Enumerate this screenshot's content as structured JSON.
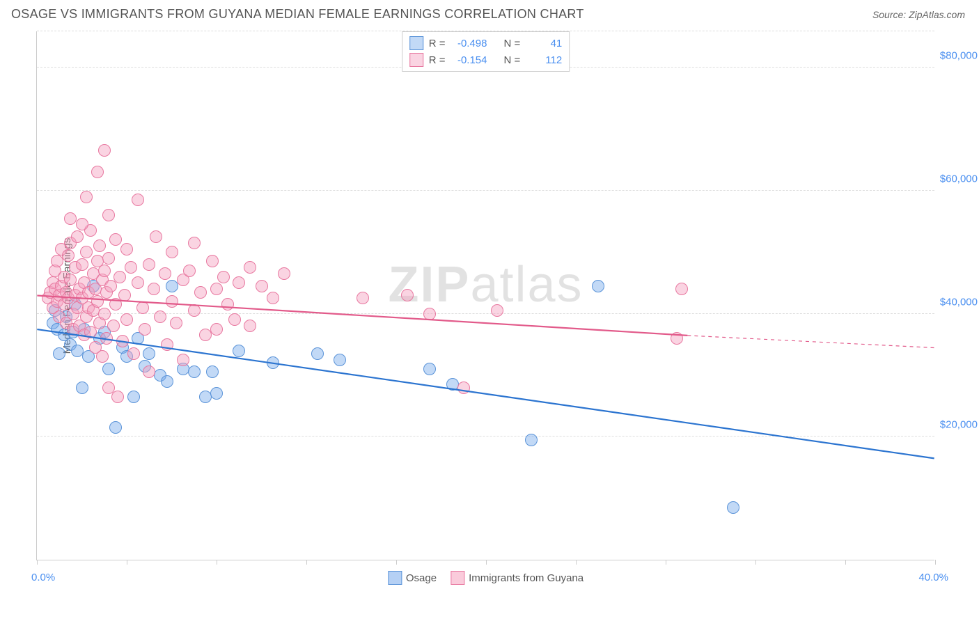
{
  "title": "OSAGE VS IMMIGRANTS FROM GUYANA MEDIAN FEMALE EARNINGS CORRELATION CHART",
  "source_label": "Source: ",
  "source_name": "ZipAtlas.com",
  "watermark_a": "ZIP",
  "watermark_b": "atlas",
  "chart": {
    "type": "scatter",
    "yaxis_title": "Median Female Earnings",
    "xlim": [
      0,
      40
    ],
    "ylim": [
      0,
      86000
    ],
    "xlabel_min": "0.0%",
    "xlabel_max": "40.0%",
    "ytick_values": [
      20000,
      40000,
      60000,
      80000
    ],
    "ytick_labels": [
      "$20,000",
      "$40,000",
      "$60,000",
      "$80,000"
    ],
    "xtick_values": [
      0,
      4,
      8,
      12,
      16,
      20,
      24,
      28,
      32,
      36,
      40
    ],
    "background_color": "#ffffff",
    "grid_color": "#dddddd",
    "marker_radius": 9,
    "marker_stroke_width": 1.2,
    "series": [
      {
        "name": "Osage",
        "fill": "rgba(120,170,235,0.45)",
        "stroke": "#5a93d8",
        "line_color": "#2b74d0",
        "line_width": 2.2,
        "regression": {
          "x1": 0,
          "y1": 37500,
          "x2": 40,
          "y2": 16500,
          "dash_after_x": 40
        },
        "R": "-0.498",
        "N": "41",
        "points": [
          [
            0.7,
            38500
          ],
          [
            0.8,
            40500
          ],
          [
            0.9,
            37500
          ],
          [
            1.0,
            33500
          ],
          [
            1.2,
            36500
          ],
          [
            1.3,
            39500
          ],
          [
            1.5,
            35000
          ],
          [
            1.6,
            37000
          ],
          [
            1.7,
            41500
          ],
          [
            1.8,
            34000
          ],
          [
            2.0,
            28000
          ],
          [
            2.1,
            37500
          ],
          [
            2.3,
            33000
          ],
          [
            2.5,
            44500
          ],
          [
            2.8,
            36000
          ],
          [
            3.0,
            37000
          ],
          [
            3.2,
            31000
          ],
          [
            3.5,
            21500
          ],
          [
            3.8,
            34500
          ],
          [
            4.0,
            33000
          ],
          [
            4.3,
            26500
          ],
          [
            4.5,
            36000
          ],
          [
            4.8,
            31500
          ],
          [
            5.0,
            33500
          ],
          [
            5.5,
            30000
          ],
          [
            5.8,
            29000
          ],
          [
            6.0,
            44500
          ],
          [
            6.5,
            31000
          ],
          [
            7.0,
            30500
          ],
          [
            7.5,
            26500
          ],
          [
            7.8,
            30500
          ],
          [
            8.0,
            27000
          ],
          [
            9.0,
            34000
          ],
          [
            10.5,
            32000
          ],
          [
            12.5,
            33500
          ],
          [
            13.5,
            32500
          ],
          [
            17.5,
            31000
          ],
          [
            18.5,
            28500
          ],
          [
            22.0,
            19500
          ],
          [
            25.0,
            44500
          ],
          [
            31.0,
            8500
          ]
        ]
      },
      {
        "name": "Immigrants from Guyana",
        "fill": "rgba(245,160,190,0.45)",
        "stroke": "#e878a0",
        "line_color": "#e25a8a",
        "line_width": 2.2,
        "regression": {
          "x1": 0,
          "y1": 43000,
          "x2": 29,
          "y2": 36500,
          "dash_after_x": 29,
          "dash_x2": 40,
          "dash_y2": 34500
        },
        "R": "-0.154",
        "N": "112",
        "points": [
          [
            0.5,
            42500
          ],
          [
            0.6,
            43500
          ],
          [
            0.7,
            45000
          ],
          [
            0.7,
            41000
          ],
          [
            0.8,
            47000
          ],
          [
            0.8,
            44000
          ],
          [
            0.9,
            48500
          ],
          [
            0.9,
            42000
          ],
          [
            1.0,
            43000
          ],
          [
            1.0,
            39500
          ],
          [
            1.1,
            50500
          ],
          [
            1.1,
            44500
          ],
          [
            1.2,
            46000
          ],
          [
            1.2,
            41500
          ],
          [
            1.3,
            43500
          ],
          [
            1.3,
            38500
          ],
          [
            1.4,
            49500
          ],
          [
            1.4,
            42500
          ],
          [
            1.5,
            51500
          ],
          [
            1.5,
            45500
          ],
          [
            1.6,
            40000
          ],
          [
            1.6,
            37500
          ],
          [
            1.7,
            47500
          ],
          [
            1.7,
            43000
          ],
          [
            1.8,
            52500
          ],
          [
            1.8,
            41000
          ],
          [
            1.9,
            44000
          ],
          [
            1.9,
            38000
          ],
          [
            2.0,
            48000
          ],
          [
            2.0,
            42500
          ],
          [
            2.1,
            36500
          ],
          [
            2.1,
            45000
          ],
          [
            2.2,
            50000
          ],
          [
            2.2,
            39500
          ],
          [
            2.3,
            43500
          ],
          [
            2.3,
            41000
          ],
          [
            2.4,
            53500
          ],
          [
            2.4,
            37000
          ],
          [
            2.5,
            46500
          ],
          [
            2.5,
            40500
          ],
          [
            2.6,
            44000
          ],
          [
            2.6,
            34500
          ],
          [
            2.7,
            48500
          ],
          [
            2.7,
            42000
          ],
          [
            2.8,
            38500
          ],
          [
            2.8,
            51000
          ],
          [
            2.9,
            45500
          ],
          [
            2.9,
            33000
          ],
          [
            3.0,
            47000
          ],
          [
            3.0,
            40000
          ],
          [
            3.1,
            43500
          ],
          [
            3.1,
            36000
          ],
          [
            3.2,
            49000
          ],
          [
            3.2,
            28000
          ],
          [
            3.3,
            44500
          ],
          [
            3.4,
            38000
          ],
          [
            3.5,
            52000
          ],
          [
            3.5,
            41500
          ],
          [
            3.6,
            26500
          ],
          [
            3.7,
            46000
          ],
          [
            3.8,
            35500
          ],
          [
            3.9,
            43000
          ],
          [
            4.0,
            50500
          ],
          [
            4.0,
            39000
          ],
          [
            4.2,
            47500
          ],
          [
            4.3,
            33500
          ],
          [
            4.5,
            45000
          ],
          [
            4.5,
            58500
          ],
          [
            4.7,
            41000
          ],
          [
            4.8,
            37500
          ],
          [
            5.0,
            48000
          ],
          [
            5.0,
            30500
          ],
          [
            5.2,
            44000
          ],
          [
            5.3,
            52500
          ],
          [
            5.5,
            39500
          ],
          [
            5.7,
            46500
          ],
          [
            5.8,
            35000
          ],
          [
            6.0,
            50000
          ],
          [
            6.0,
            42000
          ],
          [
            6.2,
            38500
          ],
          [
            6.5,
            45500
          ],
          [
            6.5,
            32500
          ],
          [
            6.8,
            47000
          ],
          [
            7.0,
            51500
          ],
          [
            7.0,
            40500
          ],
          [
            7.3,
            43500
          ],
          [
            7.5,
            36500
          ],
          [
            7.8,
            48500
          ],
          [
            8.0,
            44000
          ],
          [
            8.0,
            37500
          ],
          [
            8.3,
            46000
          ],
          [
            8.5,
            41500
          ],
          [
            8.8,
            39000
          ],
          [
            9.0,
            45000
          ],
          [
            9.5,
            47500
          ],
          [
            9.5,
            38000
          ],
          [
            10.0,
            44500
          ],
          [
            10.5,
            42500
          ],
          [
            11.0,
            46500
          ],
          [
            2.7,
            63000
          ],
          [
            3.0,
            66500
          ],
          [
            2.2,
            59000
          ],
          [
            14.5,
            42500
          ],
          [
            16.5,
            43000
          ],
          [
            17.5,
            40000
          ],
          [
            19.0,
            28000
          ],
          [
            20.5,
            40500
          ],
          [
            28.5,
            36000
          ],
          [
            28.7,
            44000
          ],
          [
            1.5,
            55500
          ],
          [
            2.0,
            54500
          ],
          [
            3.2,
            56000
          ]
        ]
      }
    ],
    "bottom_legend": [
      {
        "label": "Osage",
        "fill": "rgba(120,170,235,0.55)",
        "stroke": "#5a93d8"
      },
      {
        "label": "Immigrants from Guyana",
        "fill": "rgba(245,160,190,0.55)",
        "stroke": "#e878a0"
      }
    ]
  }
}
